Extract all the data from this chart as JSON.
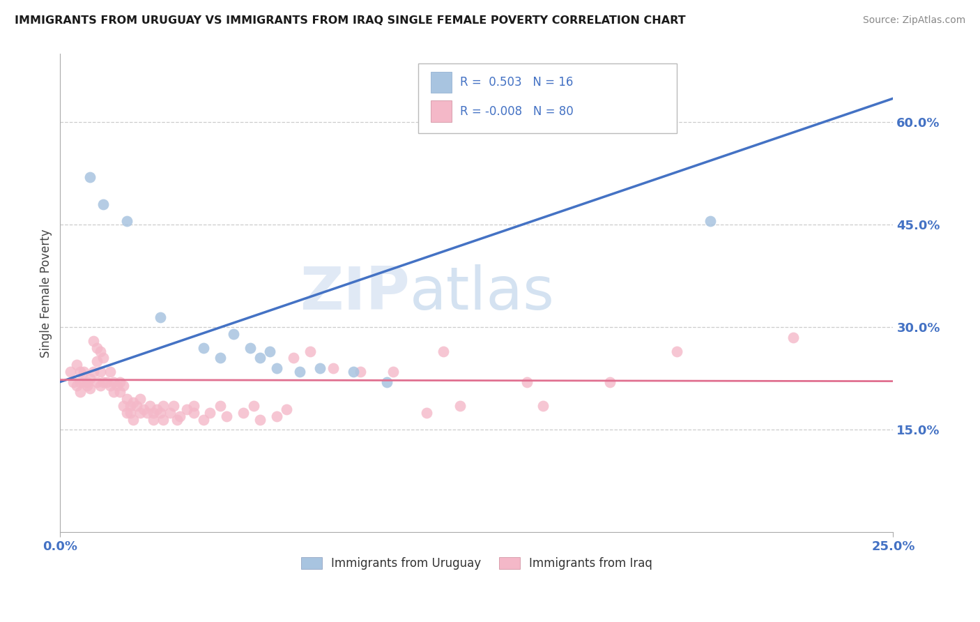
{
  "title": "IMMIGRANTS FROM URUGUAY VS IMMIGRANTS FROM IRAQ SINGLE FEMALE POVERTY CORRELATION CHART",
  "source": "Source: ZipAtlas.com",
  "ylabel": "Single Female Poverty",
  "legend_label1": "Immigrants from Uruguay",
  "legend_label2": "Immigrants from Iraq",
  "R1": 0.503,
  "N1": 16,
  "R2": -0.008,
  "N2": 80,
  "color_uruguay": "#a8c4e0",
  "color_iraq": "#f4b8c8",
  "line_color_uruguay": "#4472c4",
  "line_color_iraq": "#e07090",
  "watermark_zip": "ZIP",
  "watermark_atlas": "atlas",
  "right_yaxis_color": "#4472c4",
  "xlim": [
    0.0,
    0.25
  ],
  "ylim": [
    0.0,
    0.7
  ],
  "right_yticks": [
    0.15,
    0.3,
    0.45,
    0.6
  ],
  "right_yticklabels": [
    "15.0%",
    "30.0%",
    "45.0%",
    "60.0%"
  ],
  "grid_color": "#cccccc",
  "uru_line_x0": 0.0,
  "uru_line_y0": 0.22,
  "uru_line_x1": 0.25,
  "uru_line_y1": 0.635,
  "iraq_line_x0": 0.0,
  "iraq_line_y0": 0.223,
  "iraq_line_x1": 0.25,
  "iraq_line_y1": 0.221,
  "uruguay_points": [
    [
      0.009,
      0.52
    ],
    [
      0.013,
      0.48
    ],
    [
      0.02,
      0.455
    ],
    [
      0.03,
      0.315
    ],
    [
      0.043,
      0.27
    ],
    [
      0.048,
      0.255
    ],
    [
      0.052,
      0.29
    ],
    [
      0.057,
      0.27
    ],
    [
      0.06,
      0.255
    ],
    [
      0.063,
      0.265
    ],
    [
      0.065,
      0.24
    ],
    [
      0.072,
      0.235
    ],
    [
      0.078,
      0.24
    ],
    [
      0.088,
      0.235
    ],
    [
      0.098,
      0.22
    ],
    [
      0.195,
      0.455
    ]
  ],
  "iraq_points": [
    [
      0.003,
      0.235
    ],
    [
      0.004,
      0.22
    ],
    [
      0.005,
      0.245
    ],
    [
      0.005,
      0.215
    ],
    [
      0.006,
      0.235
    ],
    [
      0.006,
      0.22
    ],
    [
      0.006,
      0.205
    ],
    [
      0.007,
      0.22
    ],
    [
      0.007,
      0.235
    ],
    [
      0.008,
      0.215
    ],
    [
      0.008,
      0.22
    ],
    [
      0.009,
      0.225
    ],
    [
      0.009,
      0.21
    ],
    [
      0.01,
      0.235
    ],
    [
      0.01,
      0.28
    ],
    [
      0.011,
      0.27
    ],
    [
      0.011,
      0.22
    ],
    [
      0.011,
      0.25
    ],
    [
      0.012,
      0.215
    ],
    [
      0.012,
      0.265
    ],
    [
      0.012,
      0.235
    ],
    [
      0.013,
      0.255
    ],
    [
      0.013,
      0.22
    ],
    [
      0.014,
      0.22
    ],
    [
      0.015,
      0.235
    ],
    [
      0.015,
      0.215
    ],
    [
      0.016,
      0.205
    ],
    [
      0.016,
      0.22
    ],
    [
      0.017,
      0.215
    ],
    [
      0.018,
      0.205
    ],
    [
      0.018,
      0.22
    ],
    [
      0.019,
      0.215
    ],
    [
      0.019,
      0.185
    ],
    [
      0.02,
      0.175
    ],
    [
      0.02,
      0.195
    ],
    [
      0.021,
      0.185
    ],
    [
      0.021,
      0.175
    ],
    [
      0.022,
      0.19
    ],
    [
      0.022,
      0.165
    ],
    [
      0.023,
      0.185
    ],
    [
      0.024,
      0.175
    ],
    [
      0.024,
      0.195
    ],
    [
      0.025,
      0.18
    ],
    [
      0.026,
      0.175
    ],
    [
      0.027,
      0.185
    ],
    [
      0.028,
      0.175
    ],
    [
      0.028,
      0.165
    ],
    [
      0.029,
      0.18
    ],
    [
      0.03,
      0.175
    ],
    [
      0.031,
      0.185
    ],
    [
      0.031,
      0.165
    ],
    [
      0.033,
      0.175
    ],
    [
      0.034,
      0.185
    ],
    [
      0.035,
      0.165
    ],
    [
      0.036,
      0.17
    ],
    [
      0.038,
      0.18
    ],
    [
      0.04,
      0.175
    ],
    [
      0.04,
      0.185
    ],
    [
      0.043,
      0.165
    ],
    [
      0.045,
      0.175
    ],
    [
      0.048,
      0.185
    ],
    [
      0.05,
      0.17
    ],
    [
      0.055,
      0.175
    ],
    [
      0.058,
      0.185
    ],
    [
      0.06,
      0.165
    ],
    [
      0.065,
      0.17
    ],
    [
      0.068,
      0.18
    ],
    [
      0.07,
      0.255
    ],
    [
      0.075,
      0.265
    ],
    [
      0.082,
      0.24
    ],
    [
      0.09,
      0.235
    ],
    [
      0.1,
      0.235
    ],
    [
      0.11,
      0.175
    ],
    [
      0.115,
      0.265
    ],
    [
      0.12,
      0.185
    ],
    [
      0.14,
      0.22
    ],
    [
      0.145,
      0.185
    ],
    [
      0.165,
      0.22
    ],
    [
      0.185,
      0.265
    ],
    [
      0.22,
      0.285
    ]
  ]
}
